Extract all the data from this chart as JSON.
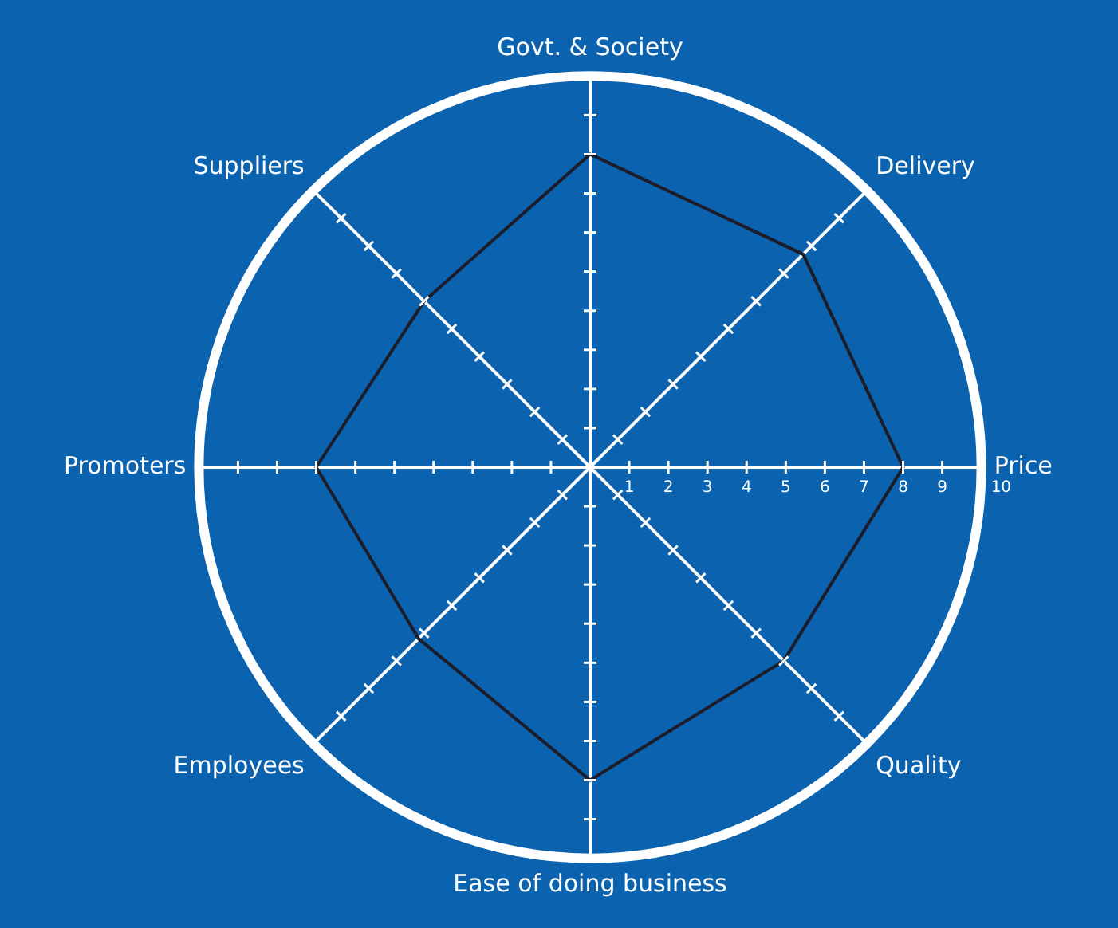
{
  "chart_data": {
    "type": "radar",
    "categories": [
      "Govt. & Society",
      "Delivery",
      "Price",
      "Quality",
      "Ease of doing business",
      "Employees",
      "Promoters",
      "Suppliers"
    ],
    "series": [
      {
        "color": "#1c1c2a",
        "values": [
          8,
          7.7,
          8,
          7,
          8,
          6.2,
          7,
          6
        ]
      }
    ],
    "ylim": [
      0,
      10
    ],
    "yticks": [
      1,
      2,
      3,
      4,
      5,
      6,
      7,
      8,
      9,
      10
    ],
    "grid": false,
    "legend": false,
    "marker": "none"
  }
}
